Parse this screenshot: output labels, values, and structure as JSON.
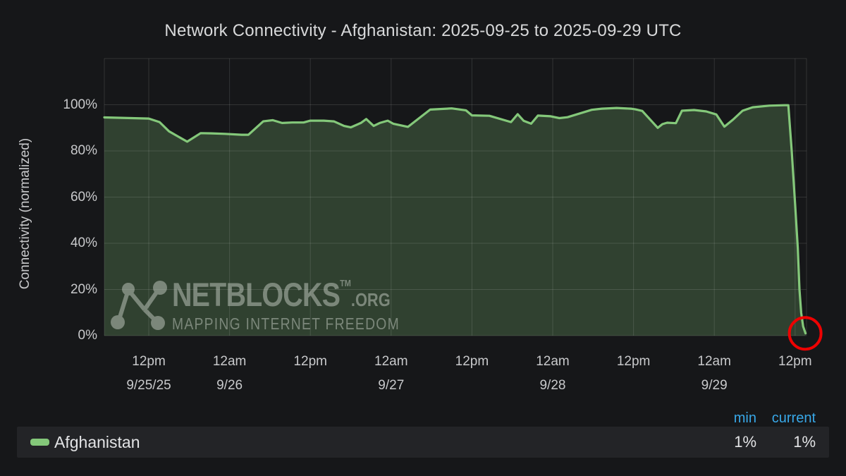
{
  "header": {
    "title": "Network Connectivity - Afghanistan: 2025-09-25 to 2025-09-29 UTC"
  },
  "watermark": {
    "brand": "NETBLOCKS",
    "trademark": "TM",
    "tld": ".ORG",
    "tagline": "MAPPING INTERNET FREEDOM"
  },
  "legend": {
    "min_header": "min",
    "current_header": "current",
    "series_label": "Afghanistan",
    "min_value": "1%",
    "current_value": "1%"
  },
  "colors": {
    "background": "#161719",
    "line_green": "#84c87a",
    "fill_green_rgba": "rgba(132,200,122,0.24)",
    "grid_rgba": "rgba(255,255,255,0.12)",
    "axis_text": "#c8c9cb",
    "title_text": "#d8d9da",
    "legend_header_blue": "#38a8e8",
    "annotation_red": "#ee0202"
  },
  "chart_data": {
    "type": "area",
    "title": "Network Connectivity - Afghanistan: 2025-09-25 to 2025-09-29 UTC",
    "xlabel": "",
    "ylabel": "Connectivity (normalized)",
    "series_name": "Afghanistan",
    "grid": true,
    "legend_position": "bottom",
    "y_domain": [
      0,
      120
    ],
    "y_ticks": [
      {
        "v": 0,
        "label": "0%"
      },
      {
        "v": 20,
        "label": "20%"
      },
      {
        "v": 40,
        "label": "40%"
      },
      {
        "v": 60,
        "label": "60%"
      },
      {
        "v": 80,
        "label": "80%"
      },
      {
        "v": 100,
        "label": "100%"
      }
    ],
    "x_domain_hours_from_2025_09_25_00_utc": [
      5.4,
      109.7
    ],
    "x_ticks": [
      {
        "t": 12,
        "time": "12pm",
        "date": "9/25/25"
      },
      {
        "t": 24,
        "time": "12am",
        "date": "9/26"
      },
      {
        "t": 36,
        "time": "12pm",
        "date": ""
      },
      {
        "t": 48,
        "time": "12am",
        "date": "9/27"
      },
      {
        "t": 60,
        "time": "12pm",
        "date": ""
      },
      {
        "t": 72,
        "time": "12am",
        "date": "9/28"
      },
      {
        "t": 84,
        "time": "12pm",
        "date": ""
      },
      {
        "t": 96,
        "time": "12am",
        "date": "9/29"
      },
      {
        "t": 108,
        "time": "12pm",
        "date": ""
      }
    ],
    "points_t_hours_vs_pct": [
      [
        5.4,
        94.5
      ],
      [
        12,
        94
      ],
      [
        13.6,
        92.5
      ],
      [
        15,
        88.5
      ],
      [
        17.7,
        84
      ],
      [
        19.7,
        87.7
      ],
      [
        21.3,
        87.6
      ],
      [
        23.3,
        87.4
      ],
      [
        25.8,
        87.0
      ],
      [
        26.8,
        87.0
      ],
      [
        29,
        92.8
      ],
      [
        30.4,
        93.3
      ],
      [
        31.8,
        92.1
      ],
      [
        33.3,
        92.3
      ],
      [
        35,
        92.3
      ],
      [
        36,
        93.1
      ],
      [
        38,
        93.1
      ],
      [
        39.5,
        92.8
      ],
      [
        41,
        90.8
      ],
      [
        42,
        90.2
      ],
      [
        43.5,
        92.1
      ],
      [
        44.3,
        93.8
      ],
      [
        45.4,
        90.8
      ],
      [
        46.3,
        92.1
      ],
      [
        47.5,
        93.1
      ],
      [
        48.3,
        91.8
      ],
      [
        50.5,
        90.4
      ],
      [
        53.8,
        97.9
      ],
      [
        57,
        98.4
      ],
      [
        59.1,
        97.6
      ],
      [
        60,
        95.4
      ],
      [
        62.6,
        95.2
      ],
      [
        65.8,
        92.5
      ],
      [
        66.8,
        95.9
      ],
      [
        67.7,
        93
      ],
      [
        68.8,
        91.8
      ],
      [
        69.8,
        95.3
      ],
      [
        71.7,
        95
      ],
      [
        73,
        94.2
      ],
      [
        74.2,
        94.6
      ],
      [
        77.8,
        97.8
      ],
      [
        79.3,
        98.3
      ],
      [
        81.5,
        98.6
      ],
      [
        83.6,
        98.3
      ],
      [
        84.3,
        98
      ],
      [
        85.3,
        97.3
      ],
      [
        87.6,
        90
      ],
      [
        88.3,
        91.6
      ],
      [
        89,
        92.2
      ],
      [
        90.3,
        92
      ],
      [
        91.2,
        97.4
      ],
      [
        93,
        97.7
      ],
      [
        94.8,
        97.1
      ],
      [
        96.3,
        95.8
      ],
      [
        97.5,
        90.5
      ],
      [
        98.8,
        93.6
      ],
      [
        100.2,
        97.4
      ],
      [
        101.7,
        98.9
      ],
      [
        104.2,
        99.6
      ],
      [
        106.4,
        99.8
      ],
      [
        107,
        99.8
      ],
      [
        107.5,
        80
      ],
      [
        108,
        57
      ],
      [
        108.4,
        38
      ],
      [
        108.65,
        20
      ],
      [
        108.9,
        10
      ],
      [
        109.2,
        4
      ],
      [
        109.55,
        1
      ]
    ],
    "annotation_circle": {
      "t": 109.5,
      "v": 1,
      "radius_px": 22.5
    },
    "min_pct": 1,
    "current_pct": 1
  }
}
